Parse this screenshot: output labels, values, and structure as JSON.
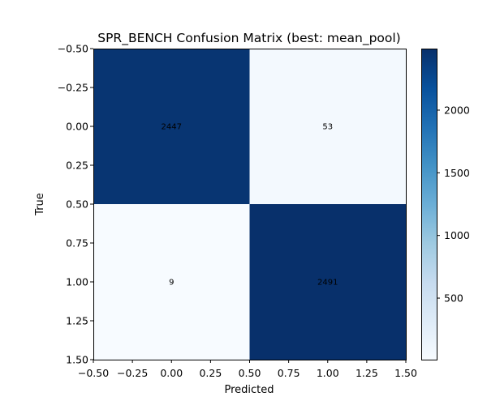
{
  "chart_data": {
    "type": "heatmap",
    "title": "SPR_BENCH Confusion Matrix (best: mean_pool)",
    "xlabel": "Predicted",
    "ylabel": "True",
    "matrix": [
      [
        2447,
        53
      ],
      [
        9,
        2491
      ]
    ],
    "cell_labels": [
      [
        "2447",
        "53"
      ],
      [
        "9",
        "2491"
      ]
    ],
    "xlim": [
      -0.5,
      1.5
    ],
    "ylim": [
      1.5,
      -0.5
    ],
    "x_ticks": [
      -0.5,
      -0.25,
      0,
      0.25,
      0.5,
      0.75,
      1,
      1.25,
      1.5
    ],
    "x_tick_labels": [
      "−0.50",
      "−0.25",
      "0.00",
      "0.25",
      "0.50",
      "0.75",
      "1.00",
      "1.25",
      "1.50"
    ],
    "y_ticks": [
      -0.5,
      -0.25,
      0,
      0.25,
      0.5,
      0.75,
      1,
      1.25,
      1.5
    ],
    "y_tick_labels": [
      "−0.50",
      "−0.25",
      "0.00",
      "0.25",
      "0.50",
      "0.75",
      "1.00",
      "1.25",
      "1.50"
    ],
    "colorbar": {
      "colormap": "Blues",
      "range": [
        9,
        2491
      ],
      "ticks": [
        500,
        1000,
        1500,
        2000
      ],
      "tick_labels": [
        "500",
        "1000",
        "1500",
        "2000"
      ]
    },
    "grid": false,
    "legend": "none"
  }
}
